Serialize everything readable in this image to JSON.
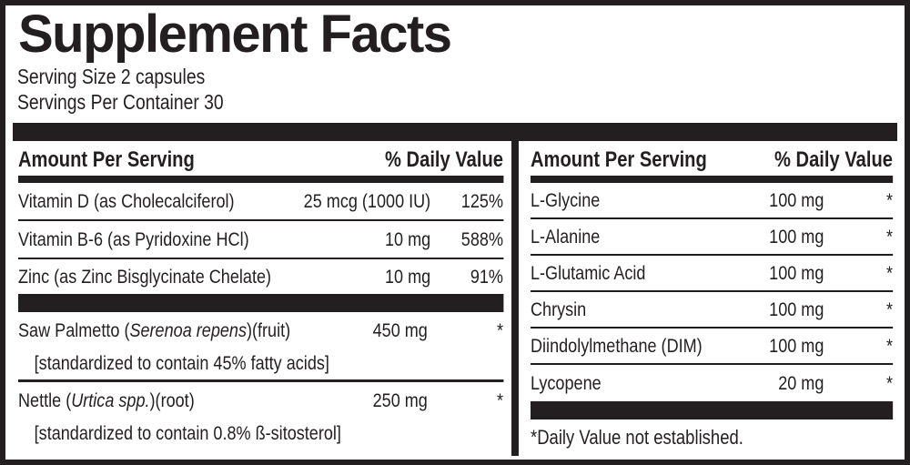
{
  "panel": {
    "title": "Supplement Facts",
    "serving_size": "Serving Size 2 capsules",
    "servings_per_container": "Servings Per Container 30",
    "ink_color": "#231f20",
    "background_color": "#ffffff",
    "column_headers": {
      "amount": "Amount Per Serving",
      "daily_value": "% Daily Value"
    },
    "left": {
      "rows": [
        {
          "name": "Vitamin D (as Cholecalciferol)",
          "amount": "25 mcg (1000 IU)",
          "dv": "125%"
        },
        {
          "name": "Vitamin B-6 (as Pyridoxine HCl)",
          "amount": "10 mg",
          "dv": "588%"
        },
        {
          "name": "Zinc (as Zinc Bisglycinate Chelate)",
          "amount": "10 mg",
          "dv": "91%"
        }
      ],
      "botanicals": [
        {
          "name_pre": "Saw Palmetto (",
          "name_species": "Serenoa repens",
          "name_post": ")(fruit)",
          "amount": "450 mg",
          "dv": "*",
          "standardization": "[standardized to contain 45% fatty acids]"
        },
        {
          "name_pre": "Nettle (",
          "name_species": "Urtica spp.",
          "name_post": ")(root)",
          "amount": "250 mg",
          "dv": "*",
          "standardization": "[standardized to contain 0.8% ß-sitosterol]"
        }
      ]
    },
    "right": {
      "rows": [
        {
          "name": "L-Glycine",
          "amount": "100 mg",
          "dv": "*"
        },
        {
          "name": "L-Alanine",
          "amount": "100 mg",
          "dv": "*"
        },
        {
          "name": "L-Glutamic Acid",
          "amount": "100 mg",
          "dv": "*"
        },
        {
          "name": "Chrysin",
          "amount": "100 mg",
          "dv": "*"
        },
        {
          "name": "Diindolylmethane (DIM)",
          "amount": "100 mg",
          "dv": "*"
        },
        {
          "name": "Lycopene",
          "amount": "20 mg",
          "dv": "*"
        }
      ],
      "footnote": "*Daily Value not established."
    }
  }
}
